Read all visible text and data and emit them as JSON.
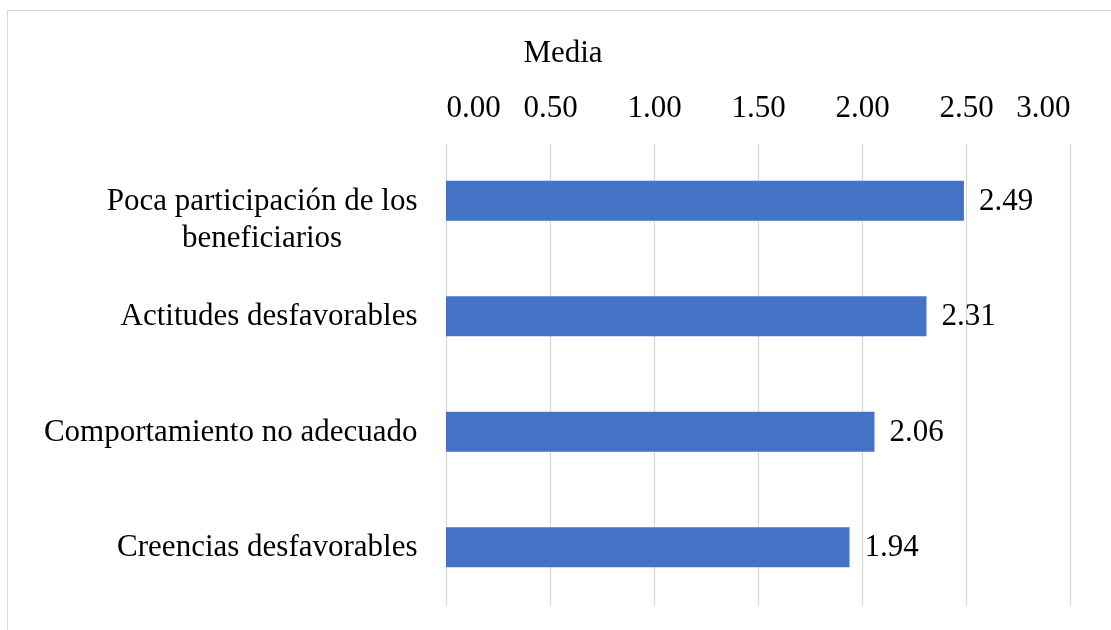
{
  "chart_data": {
    "type": "bar",
    "orientation": "horizontal",
    "title": "Media",
    "categories": [
      "Poca participación de los beneficiarios",
      "Actitudes desfavorables",
      "Comportamiento no adecuado",
      "Creencias desfavorables"
    ],
    "values": [
      2.49,
      2.31,
      2.06,
      1.94
    ],
    "color": "#4472c4",
    "xlim": [
      0,
      3
    ],
    "xticks": [
      {
        "value": 0,
        "label": "0.00"
      },
      {
        "value": 0.5,
        "label": "0.50"
      },
      {
        "value": 1,
        "label": "1.00"
      },
      {
        "value": 1.5,
        "label": "1.50"
      },
      {
        "value": 2,
        "label": "2.00"
      },
      {
        "value": 2.5,
        "label": "2.50"
      },
      {
        "value": 3,
        "label": "3.00"
      }
    ],
    "grid": "x",
    "data_labels": true
  }
}
